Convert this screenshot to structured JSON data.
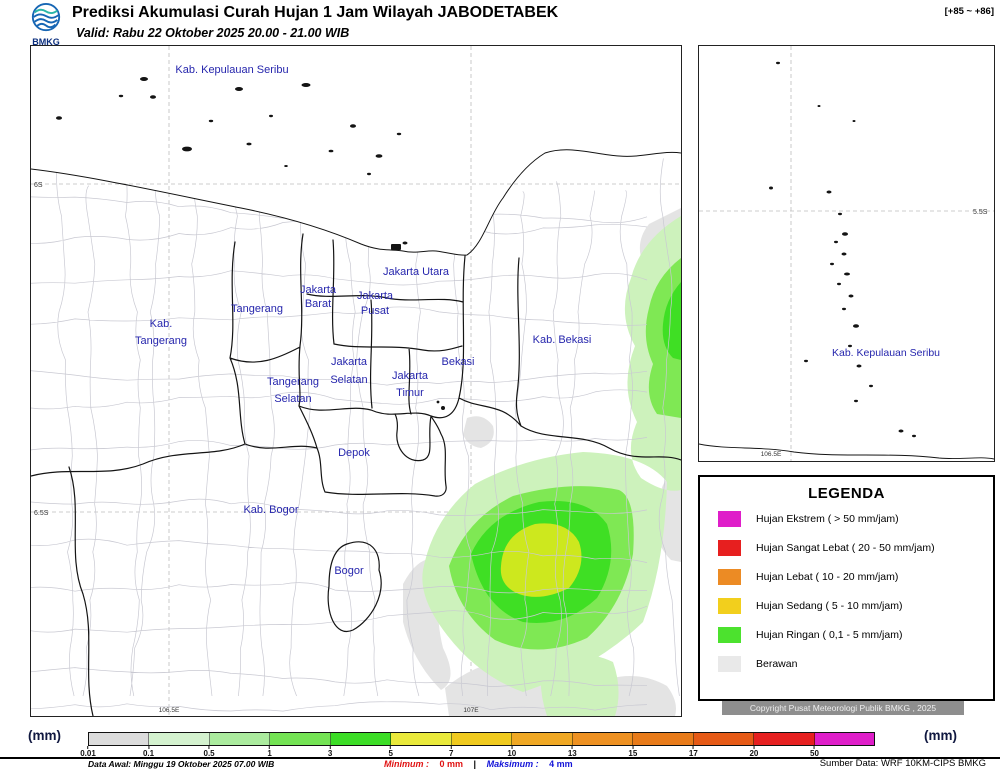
{
  "header": {
    "logo": "BMKG",
    "title": "Prediksi Akumulasi Curah Hujan 1 Jam Wilayah JABODETABEK",
    "step_range": "[+85 ~ +86]",
    "valid": "Valid: Rabu 22 Oktober 2025 20.00 - 21.00 WIB"
  },
  "main_map": {
    "labels": {
      "kepulauan_seribu": "Kab. Kepulauan Seribu",
      "jakarta_utara": "Jakarta Utara",
      "jakarta_barat": [
        "Jakarta",
        "Barat"
      ],
      "jakarta_pusat": [
        "Jakarta",
        "Pusat"
      ],
      "tangerang": "Tangerang",
      "kab_tangerang": [
        "Kab.",
        "Tangerang"
      ],
      "kab_bekasi": "Kab. Bekasi",
      "jakarta_selatan": [
        "Jakarta",
        "Selatan"
      ],
      "bekasi": "Bekasi",
      "tangerang_selatan": [
        "Tangerang",
        "Selatan"
      ],
      "jakarta_timur": [
        "Jakarta",
        "Timur"
      ],
      "depok": "Depok",
      "kab_bogor": "Kab. Bogor",
      "bogor": "Bogor"
    },
    "axis": {
      "lat_top": "6S",
      "lat_bottom": "6.5S",
      "lon_left": "106.5E",
      "lon_right": "107E"
    }
  },
  "inset_map": {
    "label": "Kab. Kepulauan Seribu",
    "axis": {
      "lat": "5.5S",
      "lon": "106.5E"
    }
  },
  "legend": {
    "title": "LEGENDA",
    "items": [
      {
        "color": "#df1ec9",
        "label": "Hujan Ekstrem ( > 50 mm/jam)"
      },
      {
        "color": "#e71f1f",
        "label": "Hujan Sangat Lebat ( 20 - 50 mm/jam)"
      },
      {
        "color": "#ec8b24",
        "label": "Hujan Lebat ( 10 - 20 mm/jam)"
      },
      {
        "color": "#f2cf1d",
        "label": "Hujan Sedang ( 5 - 10 mm/jam)"
      },
      {
        "color": "#4ce22e",
        "label": "Hujan Ringan ( 0,1 - 5 mm/jam)"
      },
      {
        "color": "#e9e9e9",
        "label": "Berawan"
      }
    ]
  },
  "copyright": "Copyright Pusat Meteorologi Publik BMKG , 2025",
  "colorbar": {
    "unit": "(mm)",
    "ticks": [
      "0.01",
      "0.1",
      "0.5",
      "1",
      "3",
      "5",
      "7",
      "10",
      "13",
      "15",
      "17",
      "20",
      "50"
    ],
    "segments": [
      "#dcdcdc",
      "#d4f2cf",
      "#abeb9e",
      "#74e354",
      "#3cdd26",
      "#e9e93b",
      "#f0ca1f",
      "#f0a824",
      "#ee9122",
      "#e87b1a",
      "#e65a16",
      "#e62020",
      "#df1ec9"
    ]
  },
  "footer": {
    "data_awal": "Data Awal: Minggu 19 Oktober 2025 07.00 WIB",
    "min_label": "Minimum :",
    "min_value": "0 mm",
    "sep": "|",
    "max_label": "Maksimum :",
    "max_value": "4 mm",
    "sumber": "Sumber Data: WRF 10KM-CIPS BMKG"
  },
  "colors": {
    "label_blue": "#2626ad",
    "min": "#e01212",
    "max": "#1414d8"
  }
}
